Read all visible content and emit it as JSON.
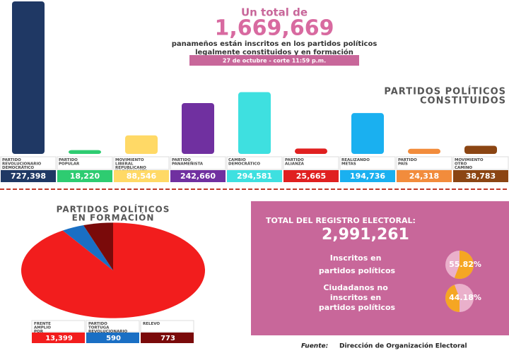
{
  "header": {
    "intro": "Un total de",
    "total": "1,669,669",
    "text": [
      "panameños están inscritos en los partidos políticos",
      "legalmente constituidos y en formación"
    ],
    "date": "27 de octubre - corte 11:59 p.m."
  },
  "chart_data": [
    {
      "type": "bar",
      "title": [
        "PARTIDOS POLÍTICOS",
        "CONSTITUIDOS"
      ],
      "categories": [
        "PARTIDO REVOLUCIONARIO DEMOCRÁTICO",
        "PARTIDO POPULAR",
        "MOVIMIENTO LIBERAL REPUBLICANO NACIONALISTA",
        "PARTIDO PANAMEÑISTA",
        "CAMBIO DEMOCRÁTICO",
        "PARTIDO ALIANZA",
        "REALIZANDO METAS",
        "PARTIDO PAÍS",
        "MOVIMIENTO OTRO CAMINO"
      ],
      "values": [
        727398,
        18220,
        88546,
        242660,
        294581,
        25665,
        194736,
        24318,
        38783
      ],
      "value_labels": [
        "727,398",
        "18,220",
        "88,546",
        "242,660",
        "294,581",
        "25,665",
        "194,736",
        "24,318",
        "38,783"
      ],
      "colors": [
        "#1f3864",
        "#2ecc71",
        "#ffd966",
        "#7030a0",
        "#3ee0e0",
        "#e02020",
        "#1ab0f0",
        "#f28c3c",
        "#8b4513"
      ]
    },
    {
      "type": "pie",
      "title": [
        "PARTIDOS POLÍTICOS",
        "EN FORMACIÓN"
      ],
      "categories": [
        "FRENTE AMPLIO POR LA DEMOCRACIA",
        "PARTIDO TORTUGA REVOLUCIONARIO",
        "RELEVO"
      ],
      "values": [
        13399,
        590,
        773
      ],
      "value_labels": [
        "13,399",
        "590",
        "773"
      ],
      "colors": [
        "#f21d1d",
        "#1a6fc4",
        "#7a0a0a"
      ]
    },
    {
      "type": "percent",
      "title": [
        "TOTAL DEL REGISTRO ELECTORAL:"
      ],
      "subtitle": "2,991,261",
      "categories": [
        "Inscritos en partidos políticos",
        "Ciudadanos no inscritos en partidos políticos"
      ],
      "values": [
        55.82,
        44.18
      ],
      "value_labels": [
        "55.82%",
        "44.18%"
      ],
      "colors": [
        "#f5a623",
        "#f5a623"
      ]
    }
  ],
  "source": {
    "label": "Fuente:",
    "text": "Dirección de Organización Electoral"
  }
}
